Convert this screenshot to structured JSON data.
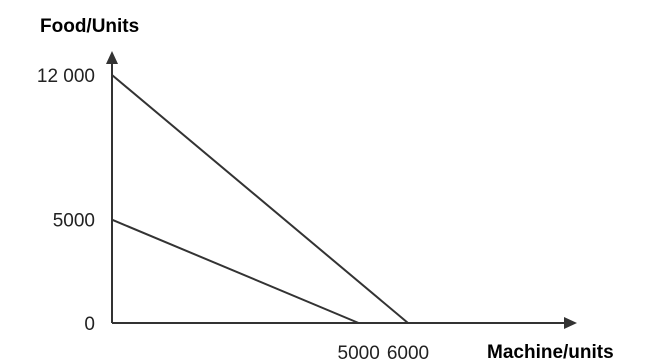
{
  "chart_data": {
    "type": "line",
    "xlabel": "Machine/units",
    "ylabel": "Food/Units",
    "xlim": [
      0,
      6700
    ],
    "ylim": [
      0,
      12000
    ],
    "x_ticks": [
      {
        "value": 5000,
        "label": "5000"
      },
      {
        "value": 6000,
        "label": "6000"
      }
    ],
    "y_ticks": [
      {
        "value": 0,
        "label": "0"
      },
      {
        "value": 5000,
        "label": "5000"
      },
      {
        "value": 12000,
        "label": "12 000"
      }
    ],
    "series": [
      {
        "x": [
          0,
          6000
        ],
        "y": [
          12000,
          0
        ]
      },
      {
        "x": [
          0,
          5000
        ],
        "y": [
          5000,
          0
        ]
      }
    ],
    "grid": false,
    "legend": "none"
  }
}
